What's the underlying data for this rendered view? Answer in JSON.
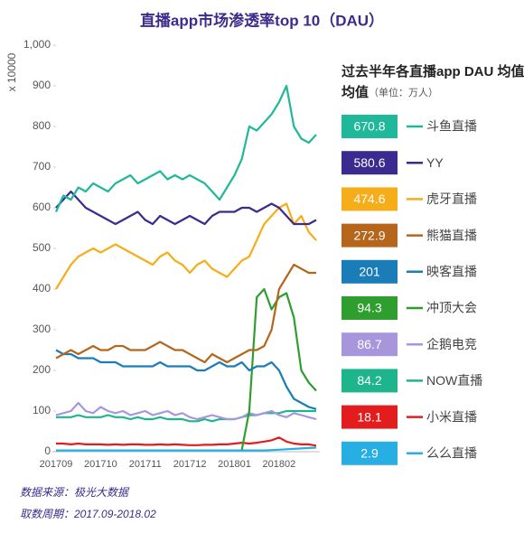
{
  "chart_data": {
    "type": "line",
    "title": "直播app市场渗透率top 10（DAU）",
    "y_label": "x 10000",
    "legend_title": "过去半年各直播app DAU 均值",
    "legend_unit": "（单位：万人）",
    "source": "数据来源：极光大数据",
    "period": "取数周期：2017.09-2018.02",
    "categories": [
      "201709",
      null,
      null,
      null,
      null,
      null,
      "201710",
      null,
      null,
      null,
      null,
      null,
      "201711",
      null,
      null,
      null,
      null,
      null,
      "201712",
      null,
      null,
      null,
      null,
      null,
      "201801",
      null,
      null,
      null,
      null,
      null,
      "201802",
      null,
      null,
      null,
      null,
      null
    ],
    "ylim": [
      0,
      1000
    ],
    "yticks": [
      0,
      100,
      200,
      300,
      400,
      500,
      600,
      700,
      800,
      900,
      {
        "value": 1000,
        "label": "1,000"
      }
    ],
    "grid": false,
    "series": [
      {
        "name": "斗鱼直播",
        "color": "#1fb89a",
        "average": 670.8,
        "values": [
          590,
          630,
          620,
          650,
          640,
          660,
          650,
          640,
          660,
          670,
          680,
          660,
          670,
          680,
          690,
          670,
          680,
          670,
          680,
          670,
          660,
          640,
          620,
          650,
          680,
          720,
          800,
          790,
          810,
          830,
          860,
          900,
          800,
          770,
          760,
          780
        ]
      },
      {
        "name": "YY",
        "color": "#3b2a8f",
        "average": 580.6,
        "values": [
          600,
          620,
          640,
          620,
          600,
          590,
          580,
          570,
          560,
          570,
          580,
          590,
          570,
          560,
          580,
          570,
          560,
          570,
          580,
          570,
          560,
          580,
          590,
          590,
          590,
          600,
          600,
          590,
          600,
          610,
          600,
          580,
          560,
          560,
          560,
          570
        ]
      },
      {
        "name": "虎牙直播",
        "color": "#f5ad19",
        "average": 474.6,
        "values": [
          400,
          430,
          460,
          480,
          490,
          500,
          490,
          500,
          510,
          500,
          490,
          480,
          470,
          460,
          480,
          490,
          470,
          460,
          440,
          460,
          470,
          450,
          440,
          430,
          450,
          470,
          480,
          520,
          560,
          580,
          600,
          610,
          560,
          580,
          540,
          520
        ]
      },
      {
        "name": "熊猫直播",
        "color": "#b5661b",
        "average": 272.9,
        "values": [
          230,
          240,
          250,
          240,
          250,
          260,
          250,
          250,
          260,
          260,
          250,
          250,
          250,
          260,
          270,
          260,
          250,
          250,
          240,
          230,
          220,
          240,
          230,
          220,
          230,
          240,
          250,
          250,
          260,
          300,
          400,
          430,
          460,
          450,
          440,
          440
        ]
      },
      {
        "name": "映客直播",
        "color": "#1a7db8",
        "average": 201.0,
        "values": [
          250,
          240,
          240,
          230,
          230,
          230,
          220,
          220,
          220,
          210,
          210,
          210,
          210,
          210,
          220,
          210,
          210,
          210,
          210,
          200,
          200,
          210,
          220,
          210,
          210,
          220,
          200,
          210,
          210,
          220,
          200,
          160,
          130,
          120,
          110,
          105
        ]
      },
      {
        "name": "冲顶大会",
        "color": "#2e9e2e",
        "average": 94.3,
        "values": [
          null,
          null,
          null,
          null,
          null,
          null,
          null,
          null,
          null,
          null,
          null,
          null,
          null,
          null,
          null,
          null,
          null,
          null,
          null,
          null,
          null,
          null,
          null,
          null,
          null,
          5,
          100,
          380,
          400,
          350,
          380,
          390,
          330,
          200,
          170,
          150
        ]
      },
      {
        "name": "企鹅电竞",
        "color": "#a896dc",
        "average": 86.7,
        "values": [
          90,
          95,
          100,
          120,
          100,
          95,
          110,
          100,
          95,
          100,
          90,
          95,
          100,
          90,
          95,
          100,
          90,
          95,
          85,
          80,
          85,
          90,
          85,
          80,
          80,
          85,
          95,
          90,
          95,
          100,
          90,
          85,
          95,
          90,
          85,
          80
        ]
      },
      {
        "name": "NOW直播",
        "color": "#1eb58c",
        "average": 84.2,
        "values": [
          85,
          85,
          85,
          90,
          85,
          85,
          85,
          90,
          85,
          85,
          80,
          85,
          80,
          80,
          85,
          80,
          80,
          80,
          75,
          75,
          80,
          75,
          80,
          80,
          80,
          85,
          90,
          90,
          95,
          95,
          95,
          100,
          100,
          100,
          100,
          100
        ]
      },
      {
        "name": "小米直播",
        "color": "#e31d1d",
        "average": 18.1,
        "values": [
          20,
          20,
          18,
          20,
          18,
          18,
          18,
          17,
          18,
          17,
          18,
          18,
          17,
          17,
          18,
          17,
          18,
          17,
          16,
          16,
          17,
          17,
          18,
          18,
          20,
          22,
          20,
          22,
          25,
          28,
          35,
          25,
          20,
          18,
          18,
          15
        ]
      },
      {
        "name": "么么直播",
        "color": "#27aee3",
        "average": 2.9,
        "values": [
          3,
          3,
          3,
          3,
          3,
          3,
          3,
          3,
          3,
          3,
          3,
          3,
          3,
          3,
          3,
          3,
          3,
          3,
          3,
          3,
          3,
          3,
          3,
          3,
          3,
          3,
          3,
          3,
          3,
          4,
          5,
          6,
          7,
          8,
          9,
          10
        ]
      }
    ]
  }
}
